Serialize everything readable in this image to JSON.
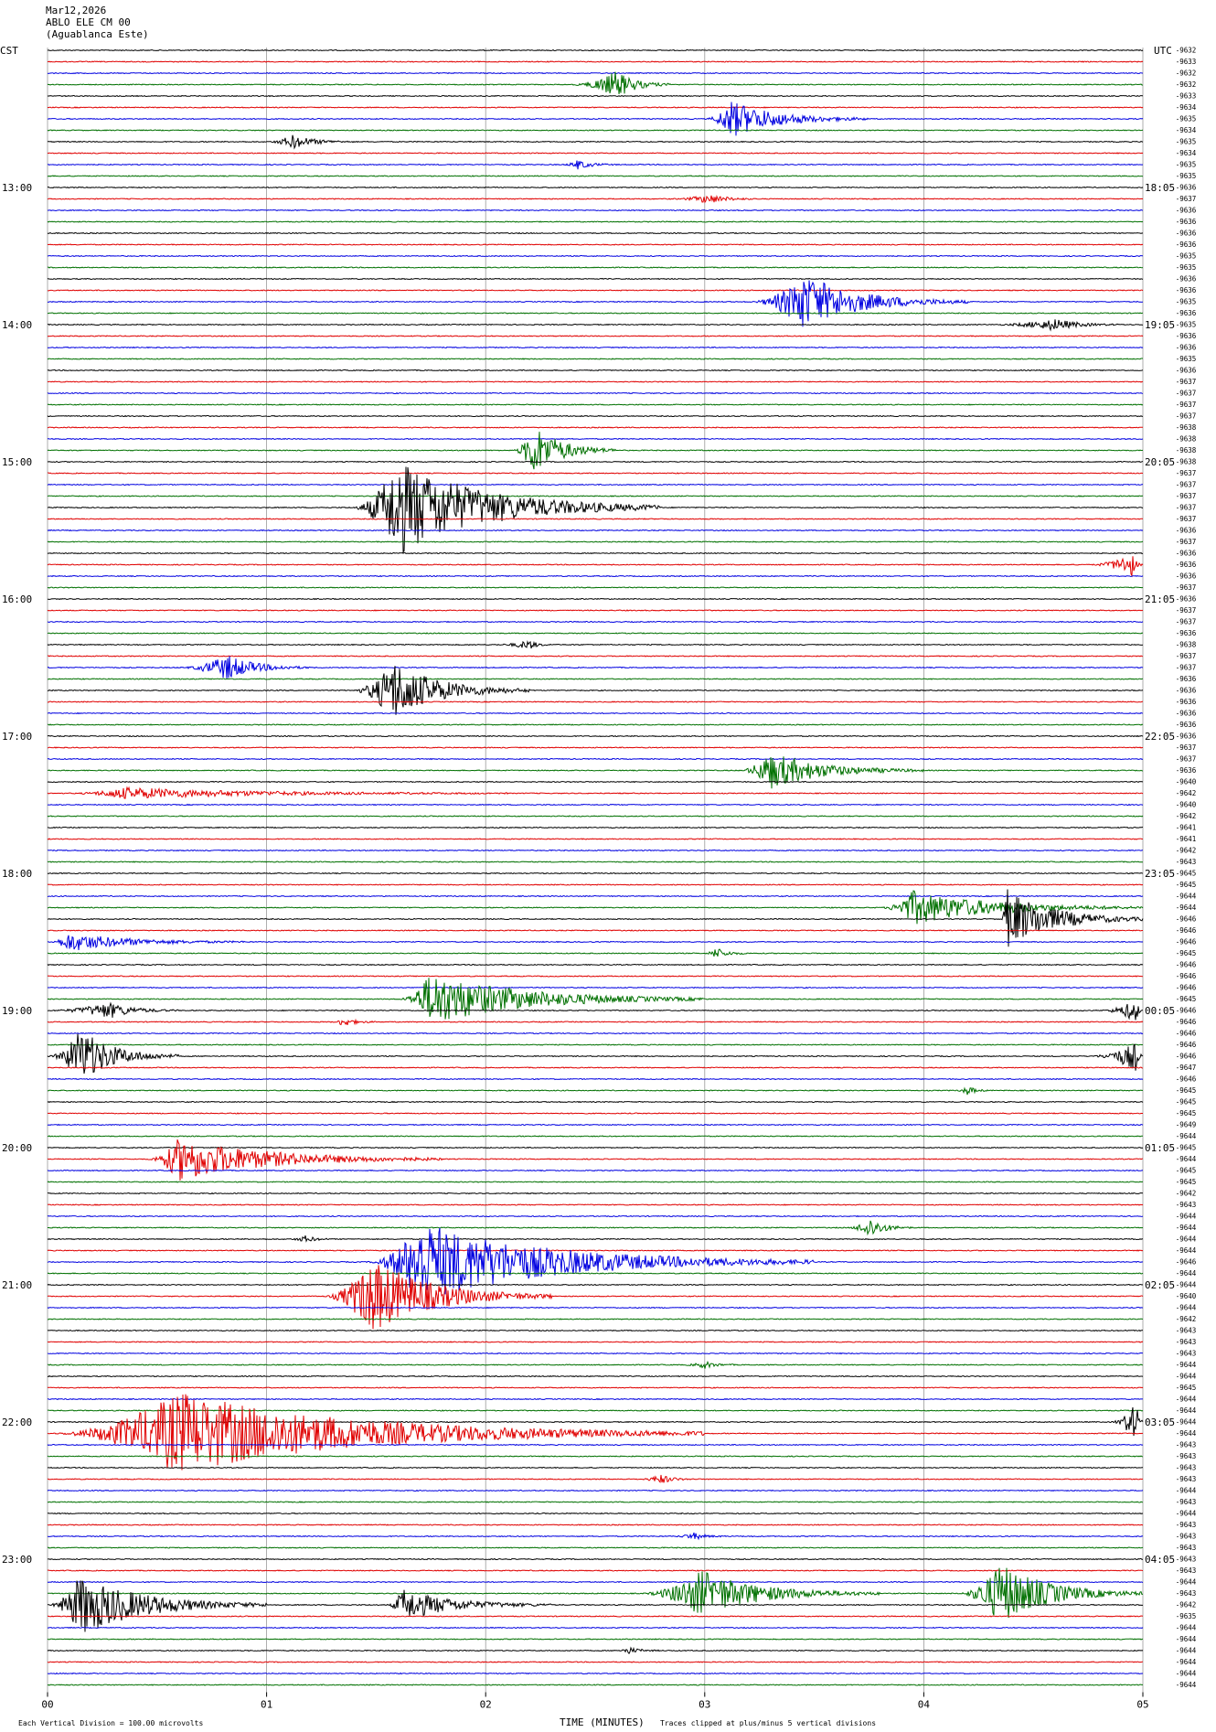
{
  "header": {
    "date": "Mar12,2026",
    "station": "ABLO ELE CM 00",
    "location": "(Aguablanca Este)",
    "left_zone": "CST",
    "right_zone": "UTC"
  },
  "footer": {
    "scale_note": "Each Vertical Division =  100.00 microvolts",
    "x_axis_title": "TIME (MINUTES)",
    "clip_note": "Traces clipped at plus/minus 5 vertical divisions"
  },
  "chart_data": {
    "type": "line",
    "title": "",
    "xlabel": "TIME (MINUTES)",
    "xlim": [
      0,
      5
    ],
    "x_ticks": [
      "00",
      "01",
      "02",
      "03",
      "04",
      "05"
    ],
    "minutes_per_line": 5,
    "line_count": 144,
    "trace_colors": [
      "#000000",
      "#e00000",
      "#0000e0",
      "#007000"
    ],
    "left_hour_labels": [
      "13:00",
      "14:00",
      "15:00",
      "16:00",
      "17:00",
      "18:00",
      "19:00",
      "20:00",
      "21:00",
      "22:00",
      "23:00"
    ],
    "right_hour_labels": [
      "18:05",
      "19:05",
      "20:05",
      "21:05",
      "22:05",
      "23:05",
      "00:05",
      "01:05",
      "02:05",
      "03:05",
      "04:05"
    ],
    "first_hour_label_line": 12,
    "lines_per_hour": 12,
    "right_offsets": [
      "-9632",
      "-9633",
      "-9632",
      "-9632",
      "-9633",
      "-9634",
      "-9635",
      "-9634",
      "-9635",
      "-9634",
      "-9635",
      "-9635",
      "-9636",
      "-9637",
      "-9636",
      "-9636",
      "-9636",
      "-9636",
      "-9635",
      "-9635",
      "-9636",
      "-9636",
      "-9635",
      "-9636",
      "-9635",
      "-9636",
      "-9636",
      "-9635",
      "-9636",
      "-9637",
      "-9637",
      "-9637",
      "-9637",
      "-9638",
      "-9638",
      "-9638",
      "-9638",
      "-9637",
      "-9637",
      "-9637",
      "-9637",
      "-9637",
      "-9636",
      "-9637",
      "-9636",
      "-9636",
      "-9636",
      "-9637",
      "-9636",
      "-9637",
      "-9637",
      "-9636",
      "-9638",
      "-9637",
      "-9637",
      "-9636",
      "-9636",
      "-9636",
      "-9636",
      "-9636",
      "-9636",
      "-9637",
      "-9637",
      "-9636",
      "-9640",
      "-9642",
      "-9640",
      "-9642",
      "-9641",
      "-9641",
      "-9642",
      "-9643",
      "-9645",
      "-9645",
      "-9644",
      "-9644",
      "-9646",
      "-9646",
      "-9646",
      "-9645",
      "-9646",
      "-9646",
      "-9646",
      "-9645",
      "-9646",
      "-9646",
      "-9646",
      "-9646",
      "-9646",
      "-9647",
      "-9646",
      "-9645",
      "-9645",
      "-9645",
      "-9649",
      "-9644",
      "-9645",
      "-9644",
      "-9645",
      "-9645",
      "-9642",
      "-9643",
      "-9644",
      "-9644",
      "-9644",
      "-9644",
      "-9646",
      "-9644",
      "-9644",
      "-9640",
      "-9644",
      "-9642",
      "-9643",
      "-9643",
      "-9643",
      "-9644",
      "-9644",
      "-9645",
      "-9644",
      "-9644",
      "-9644",
      "-9644",
      "-9643",
      "-9643",
      "-9643",
      "-9643",
      "-9644",
      "-9643",
      "-9644",
      "-9643",
      "-9643",
      "-9643",
      "-9643",
      "-9643",
      "-9644",
      "-9643",
      "-9642",
      "-9635",
      "-9644",
      "-9644",
      "-9644",
      "-9644",
      "-9644",
      "-9644"
    ],
    "events": [
      {
        "line": 3,
        "start": 2.38,
        "peak": 2.6,
        "end": 2.85,
        "amp": 1.2
      },
      {
        "line": 6,
        "start": 3.0,
        "peak": 3.12,
        "end": 3.75,
        "amp": 1.6
      },
      {
        "line": 8,
        "start": 1.0,
        "peak": 1.12,
        "end": 1.4,
        "amp": 0.6
      },
      {
        "line": 10,
        "start": 2.35,
        "peak": 2.42,
        "end": 2.6,
        "amp": 0.4
      },
      {
        "line": 13,
        "start": 2.85,
        "peak": 3.02,
        "end": 3.25,
        "amp": 0.4
      },
      {
        "line": 22,
        "start": 3.2,
        "peak": 3.45,
        "end": 4.2,
        "amp": 2.4
      },
      {
        "line": 24,
        "start": 4.3,
        "peak": 4.6,
        "end": 4.9,
        "amp": 0.5
      },
      {
        "line": 35,
        "start": 2.12,
        "peak": 2.22,
        "end": 2.6,
        "amp": 2.2
      },
      {
        "line": 40,
        "start": 1.38,
        "peak": 1.6,
        "end": 2.8,
        "amp": 4.2
      },
      {
        "line": 45,
        "start": 4.75,
        "peak": 4.95,
        "end": 5.0,
        "amp": 1.0
      },
      {
        "line": 52,
        "start": 2.05,
        "peak": 2.2,
        "end": 2.3,
        "amp": 0.4
      },
      {
        "line": 54,
        "start": 0.6,
        "peak": 0.82,
        "end": 1.2,
        "amp": 1.1
      },
      {
        "line": 56,
        "start": 1.38,
        "peak": 1.58,
        "end": 2.2,
        "amp": 2.6
      },
      {
        "line": 63,
        "start": 3.15,
        "peak": 3.3,
        "end": 4.0,
        "amp": 1.6
      },
      {
        "line": 65,
        "start": 0.1,
        "peak": 0.35,
        "end": 2.1,
        "amp": 0.5
      },
      {
        "line": 75,
        "start": 3.8,
        "peak": 3.95,
        "end": 5.0,
        "amp": 1.5
      },
      {
        "line": 76,
        "start": 4.35,
        "peak": 4.38,
        "end": 5.0,
        "amp": 2.6
      },
      {
        "line": 78,
        "start": 0.0,
        "peak": 0.1,
        "end": 0.9,
        "amp": 0.8
      },
      {
        "line": 79,
        "start": 3.0,
        "peak": 3.05,
        "end": 3.2,
        "amp": 0.5
      },
      {
        "line": 83,
        "start": 1.6,
        "peak": 1.75,
        "end": 3.0,
        "amp": 2.3
      },
      {
        "line": 84,
        "start": 0.0,
        "peak": 0.28,
        "end": 0.6,
        "amp": 0.7
      },
      {
        "line": 84,
        "start": 4.8,
        "peak": 4.97,
        "end": 5.0,
        "amp": 1.0
      },
      {
        "line": 85,
        "start": 1.3,
        "peak": 1.35,
        "end": 1.5,
        "amp": 0.4
      },
      {
        "line": 88,
        "start": 0.0,
        "peak": 0.15,
        "end": 0.6,
        "amp": 2.4
      },
      {
        "line": 88,
        "start": 4.75,
        "peak": 4.97,
        "end": 5.0,
        "amp": 1.3
      },
      {
        "line": 91,
        "start": 4.15,
        "peak": 4.2,
        "end": 4.3,
        "amp": 0.4
      },
      {
        "line": 97,
        "start": 0.45,
        "peak": 0.6,
        "end": 1.8,
        "amp": 1.9
      },
      {
        "line": 103,
        "start": 3.65,
        "peak": 3.75,
        "end": 3.95,
        "amp": 0.9
      },
      {
        "line": 104,
        "start": 1.1,
        "peak": 1.18,
        "end": 1.3,
        "amp": 0.3
      },
      {
        "line": 106,
        "start": 1.45,
        "peak": 1.7,
        "end": 3.5,
        "amp": 3.5
      },
      {
        "line": 109,
        "start": 1.25,
        "peak": 1.48,
        "end": 2.3,
        "amp": 3.3
      },
      {
        "line": 115,
        "start": 2.9,
        "peak": 3.0,
        "end": 3.15,
        "amp": 0.3
      },
      {
        "line": 121,
        "start": 0.0,
        "peak": 0.6,
        "end": 3.0,
        "amp": 3.6
      },
      {
        "line": 120,
        "start": 4.85,
        "peak": 4.97,
        "end": 5.0,
        "amp": 1.8
      },
      {
        "line": 125,
        "start": 2.7,
        "peak": 2.8,
        "end": 2.95,
        "amp": 0.4
      },
      {
        "line": 130,
        "start": 2.85,
        "peak": 2.95,
        "end": 3.1,
        "amp": 0.3
      },
      {
        "line": 135,
        "start": 2.7,
        "peak": 2.98,
        "end": 3.8,
        "amp": 2.0
      },
      {
        "line": 135,
        "start": 4.15,
        "peak": 4.35,
        "end": 5.0,
        "amp": 2.7
      },
      {
        "line": 136,
        "start": 0.0,
        "peak": 0.15,
        "end": 1.0,
        "amp": 2.7
      },
      {
        "line": 136,
        "start": 1.55,
        "peak": 1.62,
        "end": 2.3,
        "amp": 1.4
      },
      {
        "line": 140,
        "start": 2.6,
        "peak": 2.65,
        "end": 2.8,
        "amp": 0.3
      }
    ]
  }
}
